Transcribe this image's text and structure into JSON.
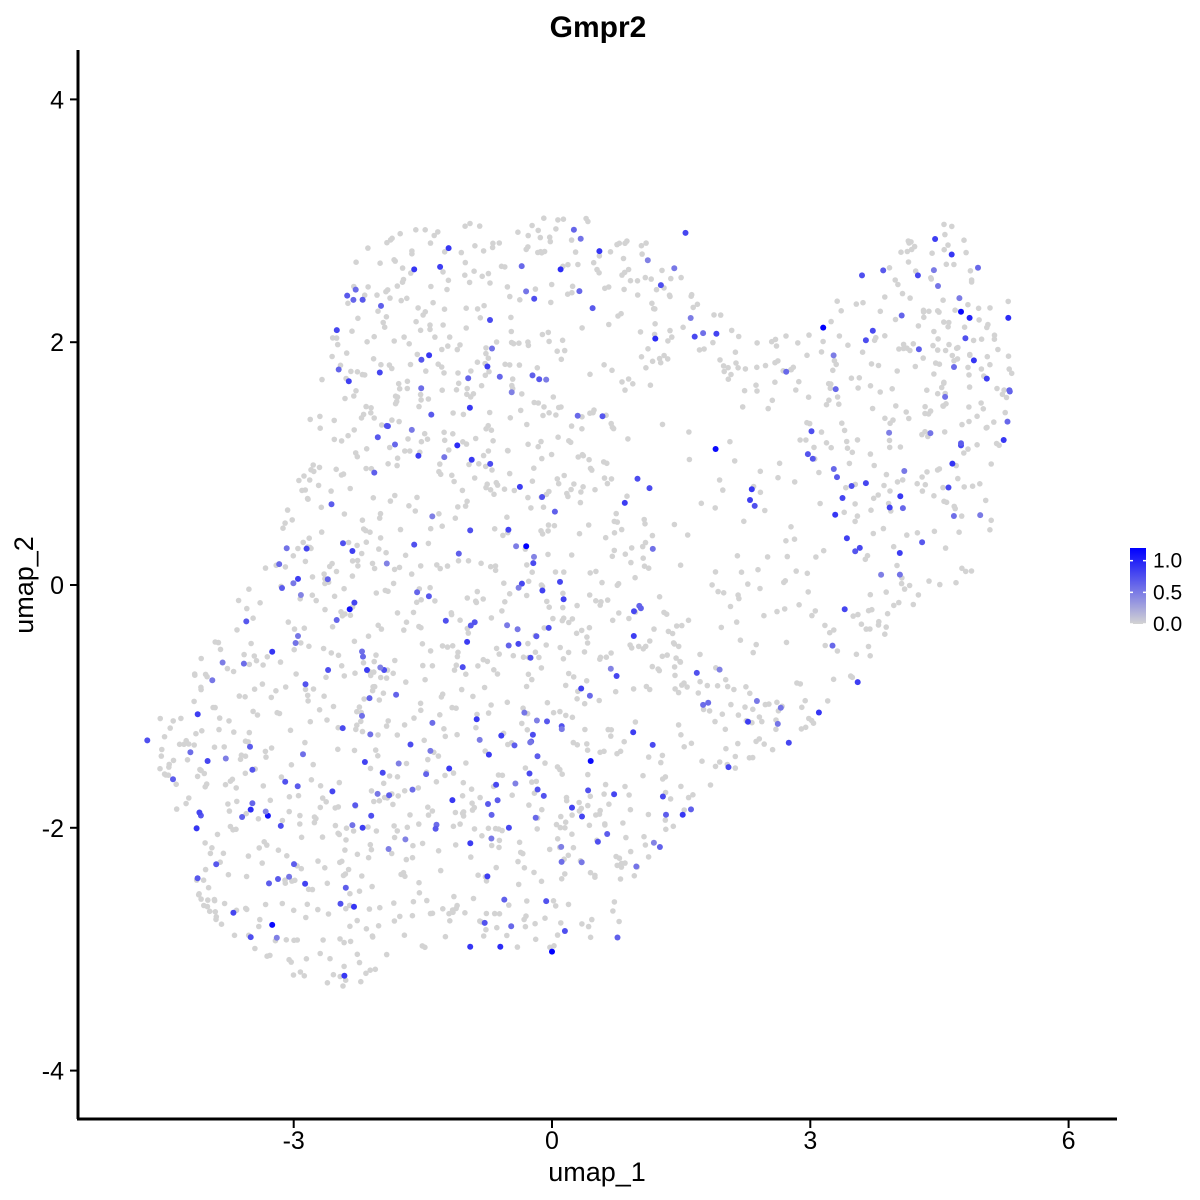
{
  "chart_data": {
    "type": "scatter",
    "title": "Gmpr2",
    "xlabel": "umap_1",
    "ylabel": "umap_2",
    "xlim": [
      -5.4,
      6.6
    ],
    "ylim": [
      -4.3,
      4.4
    ],
    "xticks": [
      -3,
      0,
      3,
      6
    ],
    "xtick_labels": [
      "-3",
      "0",
      "3",
      "6"
    ],
    "yticks": [
      -4,
      -2,
      0,
      2,
      4
    ],
    "ytick_labels": [
      "-4",
      "-2",
      "0",
      "2",
      "4"
    ],
    "grid": false,
    "color_scale": {
      "low_color": "#d3d3d3",
      "high_color": "#0000ff",
      "min": 0.0,
      "max": 1.2,
      "ticks": [
        1.0,
        0.5,
        0.0
      ],
      "tick_labels": [
        "1.0",
        "0.5",
        "0.0"
      ],
      "legend_position": "right"
    },
    "highlighted_points": [
      {
        "x": -4.7,
        "y": -1.28,
        "v": 0.75
      },
      {
        "x": -4.0,
        "y": -1.45,
        "v": 0.8
      },
      {
        "x": -3.9,
        "y": -2.3,
        "v": 0.7
      },
      {
        "x": -3.7,
        "y": -2.7,
        "v": 0.8
      },
      {
        "x": -3.5,
        "y": -1.85,
        "v": 0.95
      },
      {
        "x": -3.3,
        "y": -1.9,
        "v": 1.1
      },
      {
        "x": -3.25,
        "y": -2.8,
        "v": 1.15
      },
      {
        "x": -3.5,
        "y": -2.9,
        "v": 0.75
      },
      {
        "x": -3.55,
        "y": -0.3,
        "v": 0.7
      },
      {
        "x": -3.25,
        "y": -0.55,
        "v": 0.9
      },
      {
        "x": -2.95,
        "y": 0.05,
        "v": 0.85
      },
      {
        "x": -2.85,
        "y": 0.3,
        "v": 0.8
      },
      {
        "x": -2.6,
        "y": -0.7,
        "v": 0.75
      },
      {
        "x": -2.35,
        "y": -0.2,
        "v": 1.1
      },
      {
        "x": -2.55,
        "y": -1.7,
        "v": 0.8
      },
      {
        "x": -2.2,
        "y": -2.0,
        "v": 0.85
      },
      {
        "x": -2.3,
        "y": -2.65,
        "v": 0.9
      },
      {
        "x": -2.1,
        "y": -1.9,
        "v": 0.75
      },
      {
        "x": -1.95,
        "y": -0.7,
        "v": 0.75
      },
      {
        "x": -2.5,
        "y": 2.1,
        "v": 0.8
      },
      {
        "x": -2.2,
        "y": 2.35,
        "v": 0.7
      },
      {
        "x": -2.0,
        "y": 1.75,
        "v": 0.8
      },
      {
        "x": -1.6,
        "y": 2.6,
        "v": 0.9
      },
      {
        "x": -1.3,
        "y": 2.62,
        "v": 0.85
      },
      {
        "x": -1.1,
        "y": 1.15,
        "v": 0.95
      },
      {
        "x": -0.95,
        "y": 0.45,
        "v": 0.75
      },
      {
        "x": -0.75,
        "y": 1.8,
        "v": 0.85
      },
      {
        "x": -0.3,
        "y": 0.32,
        "v": 1.2
      },
      {
        "x": 0.1,
        "y": 2.6,
        "v": 0.95
      },
      {
        "x": 0.55,
        "y": 2.75,
        "v": 0.9
      },
      {
        "x": 0.45,
        "y": -1.45,
        "v": 1.15
      },
      {
        "x": 0.0,
        "y": -3.02,
        "v": 1.2
      },
      {
        "x": -0.6,
        "y": -2.98,
        "v": 0.95
      },
      {
        "x": -0.95,
        "y": -2.98,
        "v": 0.9
      },
      {
        "x": -0.75,
        "y": -2.4,
        "v": 0.85
      },
      {
        "x": -0.5,
        "y": -2.0,
        "v": 0.8
      },
      {
        "x": 0.15,
        "y": -2.85,
        "v": 0.75
      },
      {
        "x": -0.25,
        "y": -0.6,
        "v": 0.75
      },
      {
        "x": 0.75,
        "y": -0.75,
        "v": 0.8
      },
      {
        "x": 0.95,
        "y": -0.42,
        "v": 0.85
      },
      {
        "x": 1.2,
        "y": 2.03,
        "v": 0.95
      },
      {
        "x": 1.55,
        "y": 2.9,
        "v": 0.8
      },
      {
        "x": 1.9,
        "y": 1.12,
        "v": 1.15
      },
      {
        "x": 2.3,
        "y": 0.7,
        "v": 0.85
      },
      {
        "x": 2.05,
        "y": -1.5,
        "v": 0.8
      },
      {
        "x": 3.15,
        "y": 2.12,
        "v": 1.2
      },
      {
        "x": 3.1,
        "y": -1.05,
        "v": 0.9
      },
      {
        "x": 3.55,
        "y": -0.8,
        "v": 0.85
      },
      {
        "x": 3.6,
        "y": 2.55,
        "v": 0.75
      },
      {
        "x": 4.25,
        "y": 2.55,
        "v": 0.8
      },
      {
        "x": 4.45,
        "y": 2.85,
        "v": 0.85
      },
      {
        "x": 4.75,
        "y": 2.25,
        "v": 1.15
      },
      {
        "x": 4.85,
        "y": 2.2,
        "v": 1.0
      },
      {
        "x": 4.9,
        "y": 1.85,
        "v": 0.9
      },
      {
        "x": 5.3,
        "y": 2.2,
        "v": 0.95
      },
      {
        "x": 5.05,
        "y": 1.7,
        "v": 0.85
      },
      {
        "x": 4.65,
        "y": 1.0,
        "v": 0.9
      },
      {
        "x": 4.75,
        "y": 1.15,
        "v": 0.8
      },
      {
        "x": 3.4,
        "y": -0.2,
        "v": 0.8
      },
      {
        "x": 2.75,
        "y": -1.3,
        "v": 0.8
      }
    ]
  }
}
